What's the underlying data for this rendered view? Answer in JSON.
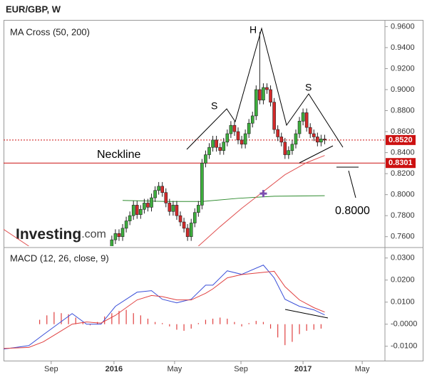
{
  "chart_data": [
    {
      "type": "candlestick",
      "title": "EUR/GBP, W",
      "indicator": "MA Cross (50, 200)",
      "watermark": {
        "brand": "Investing",
        "suffix": ".com"
      },
      "annotations": [
        "H",
        "S",
        "S",
        "Neckline",
        "0.8000"
      ],
      "up_color": "#3dae3d",
      "down_color": "#d42a2a",
      "xlim": [
        0,
        105.7
      ],
      "ylim": [
        0.751,
        0.965
      ],
      "yticks": [
        {
          "value": 0.76,
          "label": "0.7600"
        },
        {
          "value": 0.78,
          "label": "0.7800"
        },
        {
          "value": 0.8,
          "label": "0.8000"
        },
        {
          "value": 0.82,
          "label": "0.8200"
        },
        {
          "value": 0.84,
          "label": "0.8400"
        },
        {
          "value": 0.86,
          "label": "0.8600"
        },
        {
          "value": 0.88,
          "label": "0.8800"
        },
        {
          "value": 0.9,
          "label": "0.9000"
        },
        {
          "value": 0.92,
          "label": "0.9200"
        },
        {
          "value": 0.94,
          "label": "0.9400"
        },
        {
          "value": 0.96,
          "label": "0.9600"
        }
      ],
      "x": [
        30,
        31,
        32,
        33,
        34,
        35,
        36,
        37,
        38,
        39,
        40,
        41,
        42,
        43,
        44,
        45,
        46,
        47,
        48,
        49,
        50,
        51,
        52,
        53,
        54,
        55,
        56,
        57,
        58,
        59,
        60,
        61,
        62,
        63,
        64,
        65,
        66,
        67,
        68,
        69,
        70,
        71,
        72,
        73,
        74,
        75,
        76,
        77,
        78,
        79,
        80,
        81,
        82,
        83,
        84,
        85,
        86,
        87,
        88,
        89
      ],
      "open": [
        0.75,
        0.757,
        0.763,
        0.76,
        0.768,
        0.775,
        0.78,
        0.79,
        0.781,
        0.786,
        0.792,
        0.788,
        0.797,
        0.804,
        0.808,
        0.802,
        0.792,
        0.784,
        0.79,
        0.78,
        0.774,
        0.768,
        0.76,
        0.773,
        0.783,
        0.79,
        0.83,
        0.838,
        0.845,
        0.852,
        0.845,
        0.842,
        0.85,
        0.858,
        0.866,
        0.86,
        0.852,
        0.848,
        0.858,
        0.868,
        0.875,
        0.9,
        0.89,
        0.902,
        0.9,
        0.888,
        0.862,
        0.855,
        0.85,
        0.838,
        0.842,
        0.848,
        0.858,
        0.87,
        0.878,
        0.864,
        0.858,
        0.855,
        0.85,
        0.853
      ],
      "high": [
        0.761,
        0.767,
        0.767,
        0.772,
        0.779,
        0.784,
        0.794,
        0.794,
        0.79,
        0.796,
        0.796,
        0.801,
        0.808,
        0.812,
        0.812,
        0.806,
        0.796,
        0.794,
        0.794,
        0.784,
        0.778,
        0.772,
        0.777,
        0.787,
        0.794,
        0.834,
        0.842,
        0.849,
        0.856,
        0.856,
        0.849,
        0.854,
        0.862,
        0.87,
        0.87,
        0.864,
        0.856,
        0.862,
        0.872,
        0.879,
        0.904,
        0.955,
        0.906,
        0.906,
        0.904,
        0.892,
        0.866,
        0.859,
        0.854,
        0.846,
        0.852,
        0.862,
        0.874,
        0.882,
        0.882,
        0.868,
        0.862,
        0.859,
        0.857,
        0.857
      ],
      "low": [
        0.746,
        0.753,
        0.756,
        0.756,
        0.764,
        0.771,
        0.776,
        0.777,
        0.777,
        0.782,
        0.784,
        0.784,
        0.793,
        0.8,
        0.798,
        0.788,
        0.78,
        0.78,
        0.776,
        0.77,
        0.764,
        0.756,
        0.756,
        0.769,
        0.779,
        0.786,
        0.826,
        0.834,
        0.841,
        0.841,
        0.838,
        0.838,
        0.846,
        0.854,
        0.856,
        0.848,
        0.844,
        0.844,
        0.854,
        0.864,
        0.871,
        0.886,
        0.886,
        0.896,
        0.884,
        0.858,
        0.851,
        0.846,
        0.834,
        0.834,
        0.838,
        0.844,
        0.854,
        0.866,
        0.86,
        0.854,
        0.851,
        0.846,
        0.846,
        0.848
      ],
      "close": [
        0.757,
        0.763,
        0.76,
        0.768,
        0.775,
        0.78,
        0.79,
        0.781,
        0.786,
        0.792,
        0.788,
        0.797,
        0.804,
        0.808,
        0.802,
        0.792,
        0.784,
        0.79,
        0.78,
        0.774,
        0.768,
        0.76,
        0.773,
        0.783,
        0.79,
        0.83,
        0.838,
        0.845,
        0.852,
        0.845,
        0.842,
        0.85,
        0.858,
        0.866,
        0.86,
        0.852,
        0.848,
        0.858,
        0.868,
        0.875,
        0.9,
        0.89,
        0.902,
        0.9,
        0.888,
        0.862,
        0.855,
        0.85,
        0.838,
        0.842,
        0.848,
        0.858,
        0.87,
        0.878,
        0.864,
        0.858,
        0.855,
        0.85,
        0.853,
        0.852
      ],
      "series": [
        {
          "color": "#2e8b2e",
          "x": [
            33,
            45,
            55,
            65,
            75,
            89
          ],
          "values": [
            0.7945,
            0.7935,
            0.7935,
            0.7965,
            0.7985,
            0.799
          ]
        },
        {
          "color": "#e05050",
          "x": [
            0,
            7,
            30,
            54,
            60,
            66,
            72,
            78,
            84,
            89
          ],
          "values": [
            0.767,
            0.751,
            null,
            0.751,
            0.7695,
            0.787,
            0.803,
            0.819,
            0.8305,
            0.8373
          ]
        }
      ],
      "cross": {
        "x": 72,
        "y": 0.801,
        "color": "#7b4fb0"
      },
      "neckline": {
        "value": 0.8301,
        "label": "0.8301",
        "color": "#cc1111"
      },
      "last_price": {
        "value": 0.852,
        "label": "0.8520",
        "color": "#cc1111"
      }
    },
    {
      "type": "line",
      "title": "MACD (12, 26, close, 9)",
      "xlim": [
        0,
        105.7
      ],
      "ylim": [
        -0.0162,
        0.0341
      ],
      "xticks": [
        {
          "value": 13.2,
          "label": "Sep"
        },
        {
          "value": 30.6,
          "label": "2016"
        },
        {
          "value": 47.4,
          "label": "May"
        },
        {
          "value": 65.8,
          "label": "Sep"
        },
        {
          "value": 83,
          "label": "2017"
        },
        {
          "value": 99.4,
          "label": "May"
        }
      ],
      "yticks": [
        {
          "value": -0.01,
          "label": "-0.0100"
        },
        {
          "value": 0,
          "label": "-0.0000"
        },
        {
          "value": 0.01,
          "label": "0.0100"
        },
        {
          "value": 0.02,
          "label": "0.0200"
        },
        {
          "value": 0.03,
          "label": "0.0300"
        }
      ],
      "series": [
        {
          "color": "#3a4fd8",
          "x": [
            0,
            7,
            11,
            15,
            19,
            23,
            27,
            31,
            37,
            41,
            44,
            48,
            52,
            56,
            58,
            62,
            66,
            72,
            75,
            78,
            82,
            86,
            89
          ],
          "values": [
            -0.0113,
            -0.0097,
            -0.0048,
            0,
            0.0048,
            0,
            0,
            0.0081,
            0.0145,
            0.0152,
            0.0113,
            0.0097,
            0.0113,
            0.0177,
            0.0177,
            0.0242,
            0.0226,
            0.0268,
            0.021,
            0.0113,
            0.0081,
            0.0065,
            0.0042
          ]
        },
        {
          "color": "#e04040",
          "x": [
            0,
            7,
            11,
            15,
            19,
            23,
            27,
            31,
            37,
            41,
            44,
            48,
            52,
            56,
            58,
            62,
            66,
            72,
            75,
            78,
            82,
            86,
            89
          ],
          "values": [
            -0.011,
            -0.0105,
            -0.008,
            -0.004,
            0,
            0.001,
            0.0005,
            0.004,
            0.011,
            0.013,
            0.0125,
            0.011,
            0.011,
            0.014,
            0.016,
            0.021,
            0.0225,
            0.0235,
            0.024,
            0.017,
            0.011,
            0.0075,
            0.0055
          ]
        }
      ],
      "histogram": {
        "color": "#e04040",
        "x": [
          10,
          12,
          14,
          16,
          18,
          20,
          22,
          24,
          26,
          28,
          30,
          32,
          34,
          36,
          38,
          40,
          42,
          44,
          46,
          48,
          50,
          52,
          54,
          56,
          58,
          60,
          62,
          64,
          66,
          68,
          70,
          72,
          74,
          76,
          78,
          80,
          82,
          84,
          86,
          88
        ],
        "values": [
          0.002,
          0.004,
          0.0055,
          0.005,
          0.0045,
          0.003,
          0.001,
          -0.0005,
          0.001,
          0.0035,
          0.005,
          0.006,
          0.0065,
          0.005,
          0.004,
          0.0025,
          0.001,
          0.0005,
          -0.001,
          -0.0025,
          -0.003,
          -0.002,
          0.0005,
          0.002,
          0.0025,
          0.003,
          0.0025,
          0.001,
          -0.001,
          0.0005,
          0.0015,
          0.001,
          -0.002,
          -0.006,
          -0.0095,
          -0.008,
          -0.0045,
          -0.003,
          -0.0025,
          -0.002
        ]
      }
    }
  ]
}
